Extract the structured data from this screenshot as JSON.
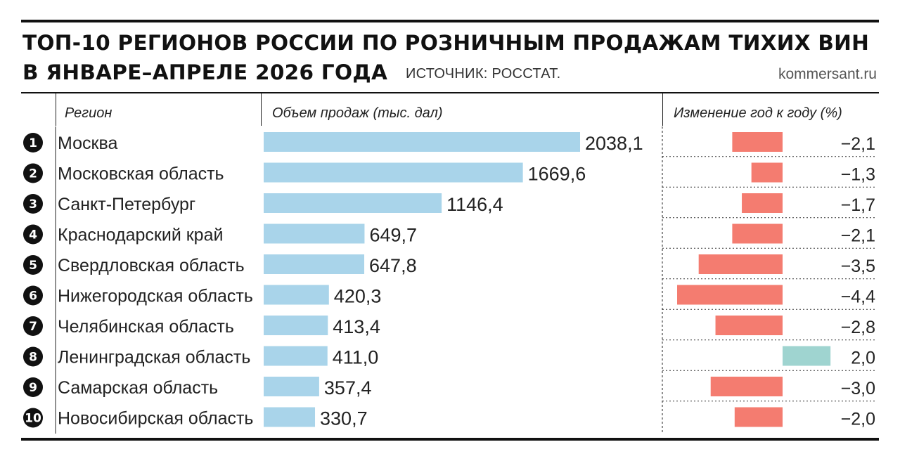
{
  "header": {
    "title_line1": "ТОП-10 РЕГИОНОВ РОССИИ ПО РОЗНИЧНЫМ ПРОДАЖАМ ТИХИХ ВИН",
    "title_line2": "В ЯНВАРЕ–АПРЕЛЕ 2026 ГОДА",
    "source": "ИСТОЧНИК: РОССТАТ.",
    "site": "kommersant.ru"
  },
  "columns": {
    "region": "Регион",
    "volume": "Объем продаж (тыс. дал)",
    "change": "Изменение год к году (%)"
  },
  "colors": {
    "volume_bar": "#a9d4ea",
    "negative_bar": "#f47c70",
    "positive_bar": "#9fd4d0",
    "text": "#111111"
  },
  "chart_data": {
    "type": "bar",
    "categories": [
      "Москва",
      "Московская область",
      "Санкт-Петербург",
      "Краснодарский край",
      "Свердловская область",
      "Нижегородская область",
      "Челябинская область",
      "Ленинградская область",
      "Самарская область",
      "Новосибирская область"
    ],
    "ranks": [
      "1",
      "2",
      "3",
      "4",
      "5",
      "6",
      "7",
      "8",
      "9",
      "10"
    ],
    "series": [
      {
        "name": "Объем продаж (тыс. дал)",
        "values": [
          2038.1,
          1669.6,
          1146.4,
          649.7,
          647.8,
          420.3,
          413.4,
          411.0,
          357.4,
          330.7
        ],
        "labels": [
          "2038,1",
          "1669,6",
          "1146,4",
          "649,7",
          "647,8",
          "420,3",
          "413,4",
          "411,0",
          "357,4",
          "330,7"
        ]
      },
      {
        "name": "Изменение год к году (%)",
        "values": [
          -2.1,
          -1.3,
          -1.7,
          -2.1,
          -3.5,
          -4.4,
          -2.8,
          2.0,
          -3.0,
          -2.0
        ],
        "labels": [
          "−2,1",
          "−1,3",
          "−1,7",
          "−2,1",
          "−3,5",
          "−4,4",
          "−2,8",
          "2,0",
          "−3,0",
          "−2,0"
        ]
      }
    ]
  }
}
